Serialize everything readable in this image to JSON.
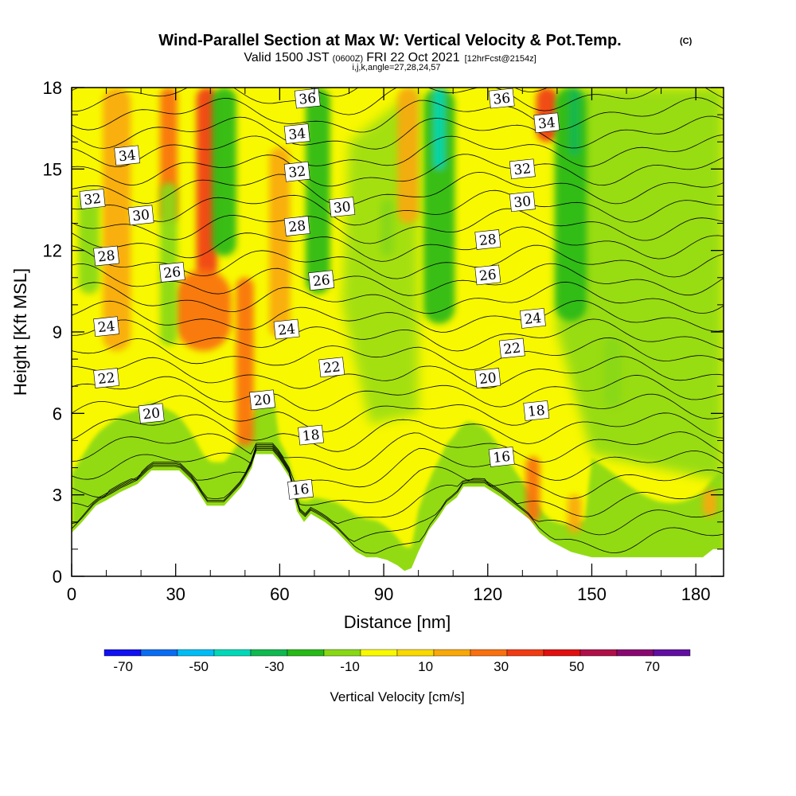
{
  "header": {
    "title": "Wind-Parallel Section at Max W: Vertical Velocity & Pot.Temp.",
    "copyright_mark": "(C)",
    "subtitle_valid": "Valid 1500 JST",
    "subtitle_utc": "(0600Z)",
    "subtitle_date": "FRI 22 Oct 2021",
    "subtitle_fcst": "[12hrFcst@2154z]",
    "grid_info": "i,j,k,angle=27,28,24,57"
  },
  "chart_data": {
    "type": "heatmap",
    "title": "Wind-Parallel Section at Max W: Vertical Velocity & Pot.Temp.",
    "xlabel": "Distance [nm]",
    "ylabel": "Height [Kft MSL]",
    "xlim": [
      0,
      188
    ],
    "ylim": [
      0,
      18
    ],
    "x_ticks": [
      "0",
      "30",
      "60",
      "90",
      "120",
      "150",
      "180"
    ],
    "y_ticks": [
      "0",
      "3",
      "6",
      "9",
      "12",
      "15",
      "18"
    ],
    "x_tick_values": [
      0,
      30,
      60,
      90,
      120,
      150,
      180
    ],
    "y_tick_values": [
      0,
      3,
      6,
      9,
      12,
      15,
      18
    ],
    "colorbar": {
      "label": "Vertical Velocity [cm/s]",
      "tick_labels": [
        "-70",
        "-50",
        "-30",
        "-10",
        "10",
        "30",
        "50",
        "70"
      ],
      "tick_values": [
        -70,
        -50,
        -30,
        -10,
        10,
        30,
        50,
        70
      ],
      "range": [
        -75,
        80
      ],
      "colors": [
        "#1010f0",
        "#0a6cf0",
        "#00bcf4",
        "#00d8b8",
        "#10b850",
        "#28b818",
        "#88d814",
        "#f8f800",
        "#f8d800",
        "#f8a808",
        "#f87010",
        "#f03c14",
        "#e01010",
        "#b01048",
        "#880870",
        "#6010a0"
      ]
    },
    "terrain_profile": [
      {
        "x": 0,
        "h": 1.6
      },
      {
        "x": 3,
        "h": 2.0
      },
      {
        "x": 7,
        "h": 2.6
      },
      {
        "x": 10,
        "h": 2.8
      },
      {
        "x": 14,
        "h": 3.1
      },
      {
        "x": 19,
        "h": 3.4
      },
      {
        "x": 23,
        "h": 3.9
      },
      {
        "x": 31,
        "h": 3.9
      },
      {
        "x": 35,
        "h": 3.4
      },
      {
        "x": 39,
        "h": 2.6
      },
      {
        "x": 44,
        "h": 2.6
      },
      {
        "x": 49,
        "h": 3.3
      },
      {
        "x": 52,
        "h": 4.0
      },
      {
        "x": 53,
        "h": 4.5
      },
      {
        "x": 58,
        "h": 4.5
      },
      {
        "x": 60,
        "h": 4.2
      },
      {
        "x": 63,
        "h": 3.6
      },
      {
        "x": 65,
        "h": 2.4
      },
      {
        "x": 67,
        "h": 2.0
      },
      {
        "x": 69,
        "h": 2.3
      },
      {
        "x": 73,
        "h": 2.0
      },
      {
        "x": 76,
        "h": 1.7
      },
      {
        "x": 79,
        "h": 1.3
      },
      {
        "x": 82,
        "h": 0.9
      },
      {
        "x": 85,
        "h": 0.7
      },
      {
        "x": 88,
        "h": 0.7
      },
      {
        "x": 91,
        "h": 0.6
      },
      {
        "x": 94,
        "h": 0.4
      },
      {
        "x": 96,
        "h": 0.2
      },
      {
        "x": 98,
        "h": 0.3
      },
      {
        "x": 100,
        "h": 0.9
      },
      {
        "x": 103,
        "h": 1.7
      },
      {
        "x": 106,
        "h": 2.2
      },
      {
        "x": 108,
        "h": 2.6
      },
      {
        "x": 111,
        "h": 2.9
      },
      {
        "x": 113,
        "h": 3.3
      },
      {
        "x": 119,
        "h": 3.3
      },
      {
        "x": 124,
        "h": 2.9
      },
      {
        "x": 128,
        "h": 2.5
      },
      {
        "x": 132,
        "h": 2.1
      },
      {
        "x": 135,
        "h": 1.6
      },
      {
        "x": 138,
        "h": 1.3
      },
      {
        "x": 141,
        "h": 1.1
      },
      {
        "x": 144,
        "h": 0.9
      },
      {
        "x": 147,
        "h": 0.8
      },
      {
        "x": 150,
        "h": 0.7
      },
      {
        "x": 155,
        "h": 0.7
      },
      {
        "x": 170,
        "h": 0.7
      },
      {
        "x": 182,
        "h": 0.7
      },
      {
        "x": 185,
        "h": 1.0
      },
      {
        "x": 188,
        "h": 1.0
      }
    ],
    "updraft_bands": [
      {
        "x": 13,
        "width": 8,
        "ymin": 8.3,
        "ymax": 18,
        "value": 18
      },
      {
        "x": 28,
        "width": 5,
        "ymin": 13.0,
        "ymax": 18,
        "value": 28
      },
      {
        "x": 39,
        "width": 6,
        "ymin": 11.0,
        "ymax": 18,
        "value": 32
      },
      {
        "x": 38,
        "width": 16,
        "ymin": 8.3,
        "ymax": 11.3,
        "value": 22
      },
      {
        "x": 50,
        "width": 5,
        "ymin": 4.8,
        "ymax": 11.0,
        "value": 24
      },
      {
        "x": 60,
        "width": 6,
        "ymin": 8.8,
        "ymax": 15.8,
        "value": 14
      },
      {
        "x": 97,
        "width": 6,
        "ymin": 13.0,
        "ymax": 18,
        "value": 14
      },
      {
        "x": 137,
        "width": 6,
        "ymin": 16.0,
        "ymax": 18,
        "value": 36
      },
      {
        "x": 133,
        "width": 4,
        "ymin": 2.0,
        "ymax": 4.4,
        "value": 24
      },
      {
        "x": 145,
        "width": 4,
        "ymin": 1.6,
        "ymax": 3.0,
        "value": 20
      },
      {
        "x": 184,
        "width": 4,
        "ymin": 2.2,
        "ymax": 3.2,
        "value": 20
      }
    ],
    "downdraft_bands": [
      {
        "x": 5,
        "width": 6,
        "ymin": 10.4,
        "ymax": 14.2,
        "value": -14
      },
      {
        "x": 28,
        "width": 5,
        "ymin": 8.5,
        "ymax": 14.5,
        "value": -12
      },
      {
        "x": 44,
        "width": 7,
        "ymin": 11.8,
        "ymax": 18,
        "value": -20
      },
      {
        "x": 71,
        "width": 7,
        "ymin": 10.4,
        "ymax": 18,
        "value": -22
      },
      {
        "x": 91,
        "width": 4,
        "ymin": 11.8,
        "ymax": 13.9,
        "value": -14
      },
      {
        "x": 106,
        "width": 9,
        "ymin": 9.3,
        "ymax": 18,
        "value": -22
      },
      {
        "x": 106,
        "width": 3,
        "ymin": 15.0,
        "ymax": 18,
        "value": -40
      },
      {
        "x": 144,
        "width": 9,
        "ymin": 9.4,
        "ymax": 18,
        "value": -24
      },
      {
        "x": 145,
        "width": 3,
        "ymin": 15.5,
        "ymax": 18,
        "value": -34
      },
      {
        "x": 156,
        "width": 5,
        "ymin": 6.2,
        "ymax": 8.8,
        "value": -14
      }
    ],
    "theta_levels": [
      12,
      13,
      14,
      15,
      16,
      17,
      18,
      19,
      20,
      21,
      22,
      23,
      24,
      25,
      26,
      27,
      28,
      29,
      30,
      31,
      32,
      33,
      34,
      35,
      36,
      37
    ],
    "contour_labels": [
      {
        "text": "34",
        "x": 16,
        "y": 15.5
      },
      {
        "text": "32",
        "x": 6,
        "y": 13.9
      },
      {
        "text": "30",
        "x": 20,
        "y": 13.3
      },
      {
        "text": "28",
        "x": 10,
        "y": 11.8
      },
      {
        "text": "26",
        "x": 29,
        "y": 11.2
      },
      {
        "text": "24",
        "x": 10,
        "y": 9.2
      },
      {
        "text": "22",
        "x": 10,
        "y": 7.3
      },
      {
        "text": "20",
        "x": 23,
        "y": 6.0
      },
      {
        "text": "36",
        "x": 68,
        "y": 17.6
      },
      {
        "text": "34",
        "x": 65,
        "y": 16.3
      },
      {
        "text": "32",
        "x": 65,
        "y": 14.9
      },
      {
        "text": "30",
        "x": 78,
        "y": 13.6
      },
      {
        "text": "28",
        "x": 65,
        "y": 12.9
      },
      {
        "text": "26",
        "x": 72,
        "y": 10.9
      },
      {
        "text": "24",
        "x": 62,
        "y": 9.1
      },
      {
        "text": "22",
        "x": 75,
        "y": 7.7
      },
      {
        "text": "20",
        "x": 55,
        "y": 6.5
      },
      {
        "text": "18",
        "x": 69,
        "y": 5.2
      },
      {
        "text": "16",
        "x": 66,
        "y": 3.2
      },
      {
        "text": "36",
        "x": 124,
        "y": 17.6
      },
      {
        "text": "34",
        "x": 137,
        "y": 16.7
      },
      {
        "text": "32",
        "x": 130,
        "y": 15.0
      },
      {
        "text": "30",
        "x": 130,
        "y": 13.8
      },
      {
        "text": "28",
        "x": 120,
        "y": 12.4
      },
      {
        "text": "26",
        "x": 120,
        "y": 11.1
      },
      {
        "text": "24",
        "x": 133,
        "y": 9.5
      },
      {
        "text": "22",
        "x": 127,
        "y": 8.4
      },
      {
        "text": "20",
        "x": 120,
        "y": 7.3
      },
      {
        "text": "18",
        "x": 134,
        "y": 6.1
      },
      {
        "text": "16",
        "x": 124,
        "y": 4.4
      }
    ]
  }
}
